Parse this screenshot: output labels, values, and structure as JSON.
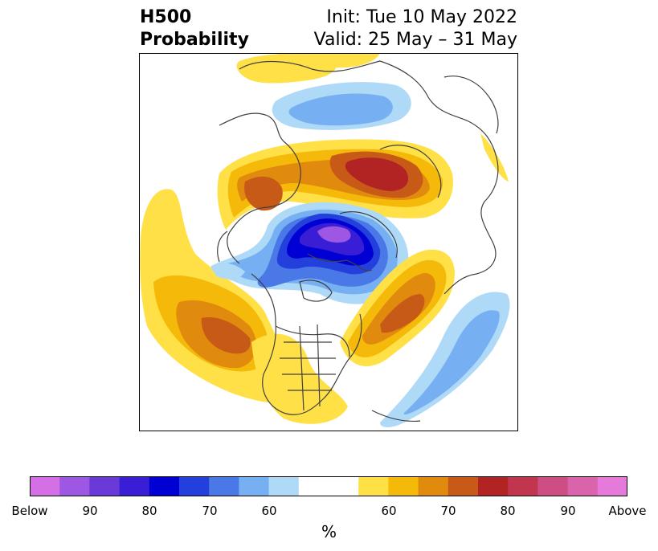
{
  "header": {
    "title_line1": "H500",
    "title_line2": "Probability",
    "init": "Init: Tue 10 May 2022",
    "valid": "Valid: 25 May – 31 May"
  },
  "colorbar": {
    "unit": "%",
    "tick_labels": [
      "Below",
      "90",
      "80",
      "70",
      "60",
      "60",
      "70",
      "80",
      "90",
      "Above"
    ],
    "colors": [
      "#d46fe6",
      "#9e57e2",
      "#6a3ad8",
      "#3a1ed6",
      "#0000d4",
      "#2340dc",
      "#4a78e6",
      "#76b0f2",
      "#aedaf8",
      "#ffffff",
      "#ffe147",
      "#f5b90a",
      "#e08a0e",
      "#c85a18",
      "#b22424",
      "#c2354e",
      "#cc4e82",
      "#d964ac",
      "#e67ada"
    ]
  },
  "map": {
    "projection": "north-polar-stereographic",
    "map_colors": {
      "yellow": "#ffe147",
      "gold": "#f5b90a",
      "orange": "#e08a0e",
      "dark_orange": "#c85a18",
      "red": "#b22424",
      "light_blue": "#aedaf8",
      "blue": "#76b0f2",
      "mid_blue": "#4a78e6",
      "dark_blue": "#2340dc",
      "navy": "#0000d4",
      "indigo": "#3a1ed6",
      "purple": "#9e57e2",
      "coast": "#404040"
    }
  }
}
